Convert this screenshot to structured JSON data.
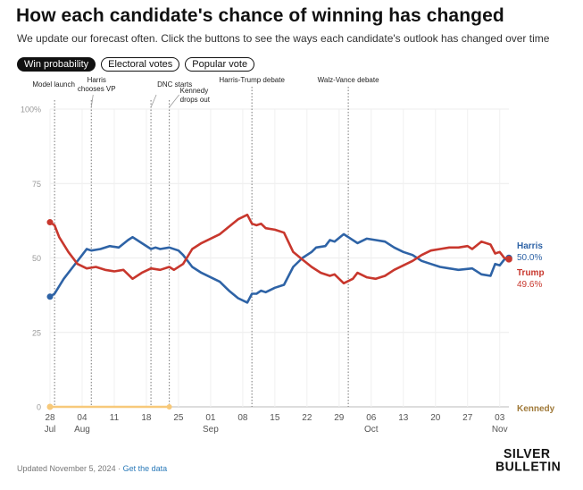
{
  "header": {
    "title": "How each candidate's chance of winning has changed",
    "subtitle": "We update our forecast often. Click the buttons to see the ways each candidate's outlook has changed over time"
  },
  "tabs": [
    {
      "label": "Win probability",
      "active": true
    },
    {
      "label": "Electoral votes",
      "active": false
    },
    {
      "label": "Popular vote",
      "active": false
    }
  ],
  "footer": {
    "updated": "Updated November 5, 2024",
    "separator": " · ",
    "link": "Get the data"
  },
  "logo": {
    "line1": "SILVER",
    "line2": "BULLETIN"
  },
  "colors": {
    "harris": "#2e63a6",
    "trump": "#c8372d",
    "kennedy": "#f7c97a",
    "kennedy_label": "#a07a3a"
  },
  "chart_data": {
    "type": "line",
    "x_start": "2024-07-28",
    "x_end": "2024-11-05",
    "ylim": [
      0,
      100
    ],
    "yticks": [
      {
        "value": 100,
        "label": "100%"
      },
      {
        "value": 75,
        "label": "75"
      },
      {
        "value": 50,
        "label": "50"
      },
      {
        "value": 25,
        "label": "25"
      },
      {
        "value": 0,
        "label": "0"
      }
    ],
    "xticks": [
      {
        "date": "2024-07-28",
        "label": "28",
        "month": "Jul"
      },
      {
        "date": "2024-08-04",
        "label": "04",
        "month": "Aug"
      },
      {
        "date": "2024-08-11",
        "label": "11"
      },
      {
        "date": "2024-08-18",
        "label": "18"
      },
      {
        "date": "2024-08-25",
        "label": "25"
      },
      {
        "date": "2024-09-01",
        "label": "01",
        "month": "Sep"
      },
      {
        "date": "2024-09-08",
        "label": "08"
      },
      {
        "date": "2024-09-15",
        "label": "15"
      },
      {
        "date": "2024-09-22",
        "label": "22"
      },
      {
        "date": "2024-09-29",
        "label": "29"
      },
      {
        "date": "2024-10-06",
        "label": "06",
        "month": "Oct"
      },
      {
        "date": "2024-10-13",
        "label": "13"
      },
      {
        "date": "2024-10-20",
        "label": "20"
      },
      {
        "date": "2024-10-27",
        "label": "27"
      },
      {
        "date": "2024-11-03",
        "label": "03",
        "month": "Nov"
      }
    ],
    "events": [
      {
        "date": "2024-07-29",
        "label": [
          "Model launch"
        ]
      },
      {
        "date": "2024-08-06",
        "label": [
          "Harris",
          "chooses VP"
        ]
      },
      {
        "date": "2024-08-19",
        "label": [
          "DNC starts"
        ]
      },
      {
        "date": "2024-08-23",
        "label": [
          "Kennedy",
          "drops out"
        ]
      },
      {
        "date": "2024-09-10",
        "label": [
          "Harris-Trump debate"
        ]
      },
      {
        "date": "2024-10-01",
        "label": [
          "Walz-Vance debate"
        ]
      }
    ],
    "series": [
      {
        "name": "Harris",
        "color": "#2e63a6",
        "final_label": "50.0%",
        "points": [
          [
            "2024-07-28",
            37
          ],
          [
            "2024-07-29",
            38
          ],
          [
            "2024-07-31",
            43
          ],
          [
            "2024-08-02",
            47
          ],
          [
            "2024-08-04",
            51
          ],
          [
            "2024-08-05",
            53
          ],
          [
            "2024-08-06",
            52.5
          ],
          [
            "2024-08-08",
            53
          ],
          [
            "2024-08-10",
            54
          ],
          [
            "2024-08-12",
            53.5
          ],
          [
            "2024-08-14",
            56
          ],
          [
            "2024-08-15",
            57
          ],
          [
            "2024-08-17",
            55
          ],
          [
            "2024-08-19",
            53
          ],
          [
            "2024-08-20",
            53.5
          ],
          [
            "2024-08-21",
            53
          ],
          [
            "2024-08-23",
            53.5
          ],
          [
            "2024-08-25",
            52.5
          ],
          [
            "2024-08-26",
            51
          ],
          [
            "2024-08-28",
            47
          ],
          [
            "2024-08-30",
            45
          ],
          [
            "2024-09-01",
            43.5
          ],
          [
            "2024-09-03",
            42
          ],
          [
            "2024-09-05",
            39
          ],
          [
            "2024-09-07",
            36.5
          ],
          [
            "2024-09-09",
            35
          ],
          [
            "2024-09-10",
            38
          ],
          [
            "2024-09-11",
            38
          ],
          [
            "2024-09-12",
            39
          ],
          [
            "2024-09-13",
            38.5
          ],
          [
            "2024-09-15",
            40
          ],
          [
            "2024-09-17",
            41
          ],
          [
            "2024-09-19",
            47
          ],
          [
            "2024-09-21",
            50
          ],
          [
            "2024-09-23",
            52
          ],
          [
            "2024-09-24",
            53.5
          ],
          [
            "2024-09-26",
            54
          ],
          [
            "2024-09-27",
            56
          ],
          [
            "2024-09-28",
            55.5
          ],
          [
            "2024-09-30",
            58
          ],
          [
            "2024-10-01",
            57
          ],
          [
            "2024-10-03",
            55
          ],
          [
            "2024-10-05",
            56.5
          ],
          [
            "2024-10-07",
            56
          ],
          [
            "2024-10-09",
            55.5
          ],
          [
            "2024-10-11",
            53.5
          ],
          [
            "2024-10-13",
            52
          ],
          [
            "2024-10-15",
            51
          ],
          [
            "2024-10-17",
            49
          ],
          [
            "2024-10-19",
            48
          ],
          [
            "2024-10-21",
            47
          ],
          [
            "2024-10-23",
            46.5
          ],
          [
            "2024-10-25",
            46
          ],
          [
            "2024-10-28",
            46.5
          ],
          [
            "2024-10-30",
            44.5
          ],
          [
            "2024-11-01",
            44
          ],
          [
            "2024-11-02",
            48
          ],
          [
            "2024-11-03",
            47.5
          ],
          [
            "2024-11-04",
            49.5
          ],
          [
            "2024-11-05",
            50
          ]
        ]
      },
      {
        "name": "Trump",
        "color": "#c8372d",
        "final_label": "49.6%",
        "points": [
          [
            "2024-07-28",
            62
          ],
          [
            "2024-07-29",
            61
          ],
          [
            "2024-07-30",
            57
          ],
          [
            "2024-08-01",
            52
          ],
          [
            "2024-08-03",
            48
          ],
          [
            "2024-08-05",
            46.5
          ],
          [
            "2024-08-07",
            47
          ],
          [
            "2024-08-09",
            46
          ],
          [
            "2024-08-11",
            45.5
          ],
          [
            "2024-08-13",
            46
          ],
          [
            "2024-08-15",
            43
          ],
          [
            "2024-08-17",
            45
          ],
          [
            "2024-08-19",
            46.5
          ],
          [
            "2024-08-21",
            46
          ],
          [
            "2024-08-23",
            47
          ],
          [
            "2024-08-24",
            46
          ],
          [
            "2024-08-26",
            48
          ],
          [
            "2024-08-28",
            53
          ],
          [
            "2024-08-30",
            55
          ],
          [
            "2024-09-01",
            56.5
          ],
          [
            "2024-09-03",
            58
          ],
          [
            "2024-09-05",
            60.5
          ],
          [
            "2024-09-07",
            63
          ],
          [
            "2024-09-09",
            64.5
          ],
          [
            "2024-09-10",
            61.5
          ],
          [
            "2024-09-11",
            61
          ],
          [
            "2024-09-12",
            61.5
          ],
          [
            "2024-09-13",
            60
          ],
          [
            "2024-09-15",
            59.5
          ],
          [
            "2024-09-17",
            58.5
          ],
          [
            "2024-09-19",
            52
          ],
          [
            "2024-09-21",
            49.5
          ],
          [
            "2024-09-23",
            47
          ],
          [
            "2024-09-25",
            45
          ],
          [
            "2024-09-27",
            44
          ],
          [
            "2024-09-28",
            44.5
          ],
          [
            "2024-09-30",
            41.5
          ],
          [
            "2024-10-02",
            43
          ],
          [
            "2024-10-03",
            45
          ],
          [
            "2024-10-05",
            43.5
          ],
          [
            "2024-10-07",
            43
          ],
          [
            "2024-10-09",
            44
          ],
          [
            "2024-10-11",
            46
          ],
          [
            "2024-10-13",
            47.5
          ],
          [
            "2024-10-15",
            49
          ],
          [
            "2024-10-17",
            51
          ],
          [
            "2024-10-19",
            52.5
          ],
          [
            "2024-10-21",
            53
          ],
          [
            "2024-10-23",
            53.5
          ],
          [
            "2024-10-25",
            53.5
          ],
          [
            "2024-10-27",
            54
          ],
          [
            "2024-10-28",
            53
          ],
          [
            "2024-10-30",
            55.5
          ],
          [
            "2024-11-01",
            54.5
          ],
          [
            "2024-11-02",
            51.5
          ],
          [
            "2024-11-03",
            52
          ],
          [
            "2024-11-04",
            50
          ],
          [
            "2024-11-05",
            49.6
          ]
        ]
      },
      {
        "name": "Kennedy",
        "color": "#f7c97a",
        "final_label": "",
        "points": [
          [
            "2024-07-28",
            0
          ],
          [
            "2024-08-23",
            0
          ]
        ]
      }
    ]
  }
}
